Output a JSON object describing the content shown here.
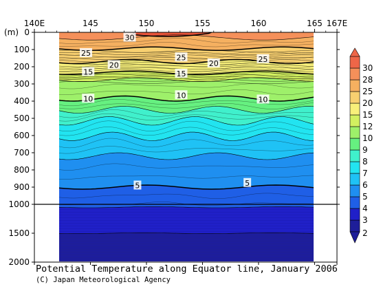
{
  "chart_data": {
    "type": "heatmap",
    "title": "Potential Temperature along Equator line, January 2006",
    "credit": "(C) Japan Meteorological Agency",
    "x_unit_label": "",
    "y_unit_label": "(m)",
    "x_ticks": [
      "140E",
      "145",
      "150",
      "155",
      "160",
      "165",
      "167E"
    ],
    "x_tick_values": [
      140,
      145,
      150,
      155,
      160,
      165,
      167
    ],
    "xlim": [
      140,
      167
    ],
    "data_xlim": [
      142,
      165
    ],
    "y_ticks_upper": [
      "0",
      "100",
      "200",
      "300",
      "400",
      "500",
      "600",
      "700",
      "800",
      "900",
      "1000"
    ],
    "y_ticks_lower": [
      "1500",
      "2000"
    ],
    "ylim": [
      0,
      2000
    ],
    "colorbar_levels": [
      "2",
      "3",
      "4",
      "5",
      "6",
      "7",
      "8",
      "9",
      "10",
      "12",
      "15",
      "20",
      "25",
      "28",
      "30"
    ],
    "colorbar_colors": [
      "#1e1e99",
      "#2020c8",
      "#1f5fe6",
      "#1f8ff0",
      "#1fc2f5",
      "#22e4f0",
      "#40f0cc",
      "#66f080",
      "#9ef06a",
      "#d2f060",
      "#f8f07a",
      "#f8d070",
      "#f5b060",
      "#f5905a",
      "#ee6648"
    ],
    "contour_labels": [
      {
        "value": "30",
        "lon": 148.5,
        "depth": 30
      },
      {
        "value": "25",
        "lon": 144.6,
        "depth": 120
      },
      {
        "value": "25",
        "lon": 153.1,
        "depth": 145
      },
      {
        "value": "25",
        "lon": 160.4,
        "depth": 155
      },
      {
        "value": "20",
        "lon": 147.1,
        "depth": 190
      },
      {
        "value": "20",
        "lon": 156.0,
        "depth": 180
      },
      {
        "value": "15",
        "lon": 144.8,
        "depth": 230
      },
      {
        "value": "15",
        "lon": 153.1,
        "depth": 240
      },
      {
        "value": "10",
        "lon": 144.8,
        "depth": 385
      },
      {
        "value": "10",
        "lon": 153.1,
        "depth": 365
      },
      {
        "value": "10",
        "lon": 160.4,
        "depth": 390
      },
      {
        "value": "5",
        "lon": 149.2,
        "depth": 890
      },
      {
        "value": "5",
        "lon": 159.0,
        "depth": 875
      }
    ]
  }
}
